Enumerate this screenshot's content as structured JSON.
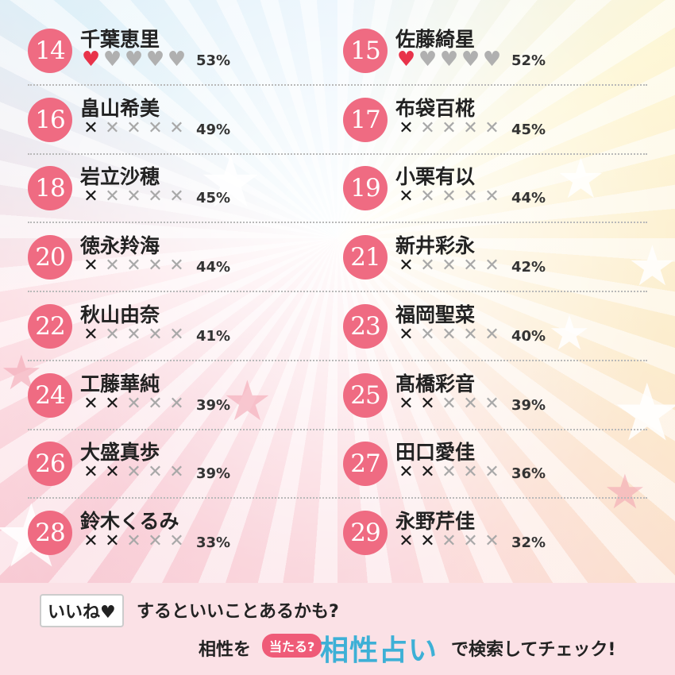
{
  "ranking": [
    {
      "rank": "14",
      "name": "千葉恵里",
      "icon": "heart",
      "score": 1,
      "percent": "53%"
    },
    {
      "rank": "15",
      "name": "佐藤綺星",
      "icon": "heart",
      "score": 1,
      "percent": "52%"
    },
    {
      "rank": "16",
      "name": "畠山希美",
      "icon": "cross",
      "score": 1,
      "percent": "49%"
    },
    {
      "rank": "17",
      "name": "布袋百椛",
      "icon": "cross",
      "score": 1,
      "percent": "45%"
    },
    {
      "rank": "18",
      "name": "岩立沙穂",
      "icon": "cross",
      "score": 1,
      "percent": "45%"
    },
    {
      "rank": "19",
      "name": "小栗有以",
      "icon": "cross",
      "score": 1,
      "percent": "44%"
    },
    {
      "rank": "20",
      "name": "徳永羚海",
      "icon": "cross",
      "score": 1,
      "percent": "44%"
    },
    {
      "rank": "21",
      "name": "新井彩永",
      "icon": "cross",
      "score": 1,
      "percent": "42%"
    },
    {
      "rank": "22",
      "name": "秋山由奈",
      "icon": "cross",
      "score": 1,
      "percent": "41%"
    },
    {
      "rank": "23",
      "name": "福岡聖菜",
      "icon": "cross",
      "score": 1,
      "percent": "40%"
    },
    {
      "rank": "24",
      "name": "工藤華純",
      "icon": "cross",
      "score": 2,
      "percent": "39%"
    },
    {
      "rank": "25",
      "name": "髙橋彩音",
      "icon": "cross",
      "score": 2,
      "percent": "39%"
    },
    {
      "rank": "26",
      "name": "大盛真歩",
      "icon": "cross",
      "score": 2,
      "percent": "39%"
    },
    {
      "rank": "27",
      "name": "田口愛佳",
      "icon": "cross",
      "score": 2,
      "percent": "36%"
    },
    {
      "rank": "28",
      "name": "鈴木くるみ",
      "icon": "cross",
      "score": 2,
      "percent": "33%"
    },
    {
      "rank": "29",
      "name": "永野芹佳",
      "icon": "cross",
      "score": 2,
      "percent": "32%"
    }
  ],
  "footer": {
    "like_badge": "いいね♥",
    "line1": "するといいことあるかも?",
    "prefix": "相性を",
    "bubble": "当たる?",
    "logo": "相性占い",
    "suffix": "で検索してチェック!"
  }
}
